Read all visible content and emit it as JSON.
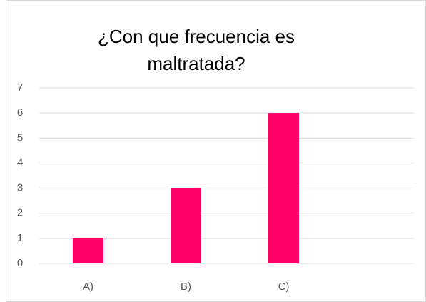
{
  "chart_data": {
    "type": "bar",
    "title": "¿Con que frecuencia es maltratada?",
    "categories": [
      "A)",
      "B)",
      "C)"
    ],
    "values": [
      1,
      3,
      6
    ],
    "color": "#ff0066",
    "ylim": [
      0,
      7
    ],
    "yticks": [
      0,
      1,
      2,
      3,
      4,
      5,
      6,
      7
    ],
    "grid": true
  }
}
